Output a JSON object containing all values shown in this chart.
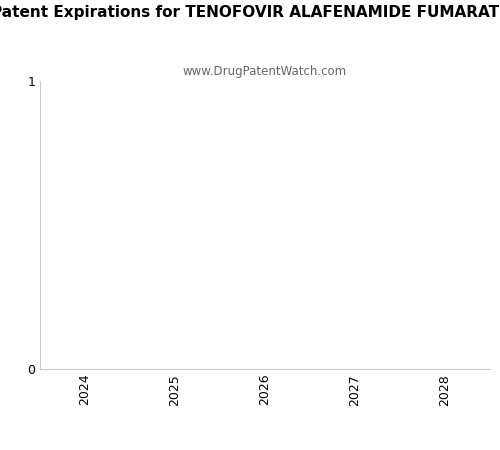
{
  "title": "Patent Expirations for TENOFOVIR ALAFENAMIDE FUMARATE",
  "subtitle": "www.DrugPatentWatch.com",
  "title_fontsize": 11,
  "title_fontweight": "bold",
  "subtitle_fontsize": 8.5,
  "subtitle_color": "#666666",
  "xlim": [
    2023.5,
    2028.5
  ],
  "ylim": [
    0,
    1
  ],
  "xticks": [
    2024,
    2025,
    2026,
    2027,
    2028
  ],
  "yticks": [
    0,
    1
  ],
  "background_color": "#ffffff",
  "spine_color": "#cccccc",
  "tick_label_fontsize": 9,
  "figsize": [
    5.0,
    4.5
  ],
  "dpi": 100
}
